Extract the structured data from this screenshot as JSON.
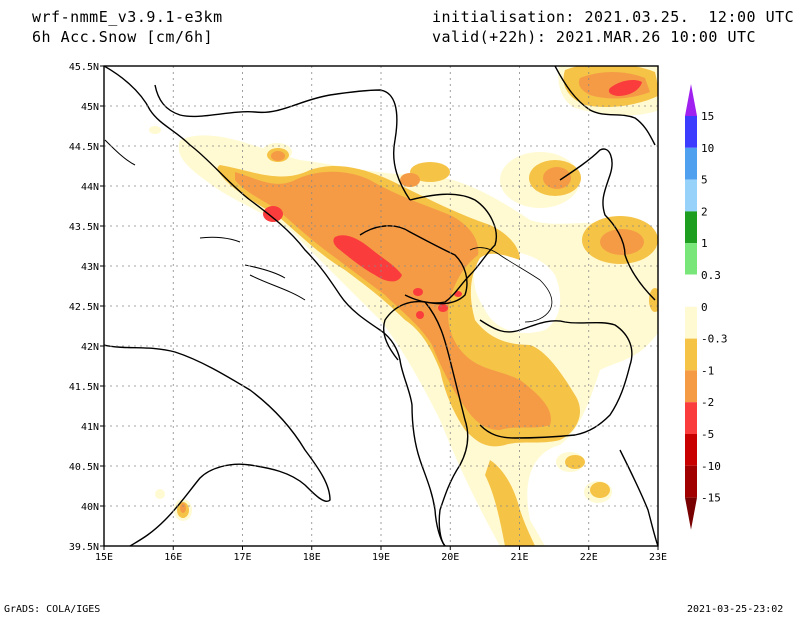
{
  "header": {
    "model": "wrf-nmmE_v3.9.1-e3km",
    "field": "6h Acc.Snow [cm/6h]",
    "init": "initialisation: 2021.03.25.  12:00 UTC",
    "valid": "valid(+22h): 2021.MAR.26 10:00 UTC"
  },
  "axes": {
    "lon_labels": [
      "15E",
      "16E",
      "17E",
      "18E",
      "19E",
      "20E",
      "21E",
      "22E",
      "23E"
    ],
    "lat_labels": [
      "45.5N",
      "45N",
      "44.5N",
      "44N",
      "43.5N",
      "43N",
      "42.5N",
      "42N",
      "41.5N",
      "41N",
      "40.5N",
      "40N",
      "39.5N"
    ]
  },
  "legend": {
    "labels": [
      "15",
      "10",
      "5",
      "2",
      "1",
      "0.3",
      "0",
      "-0.3",
      "-1",
      "-2",
      "-5",
      "-10",
      "-15"
    ],
    "colors": [
      "#a020f0",
      "#3c3cff",
      "#50a0f0",
      "#96d2fa",
      "#1e9e1e",
      "#78e678",
      "#ffffff",
      "#fffad2",
      "#f5c346",
      "#f59b46",
      "#fa3c3c",
      "#c80000",
      "#a00000",
      "#780000"
    ]
  },
  "footer": {
    "left": "GrADS: COLA/IGES",
    "right": "2021-03-25-23:02"
  }
}
